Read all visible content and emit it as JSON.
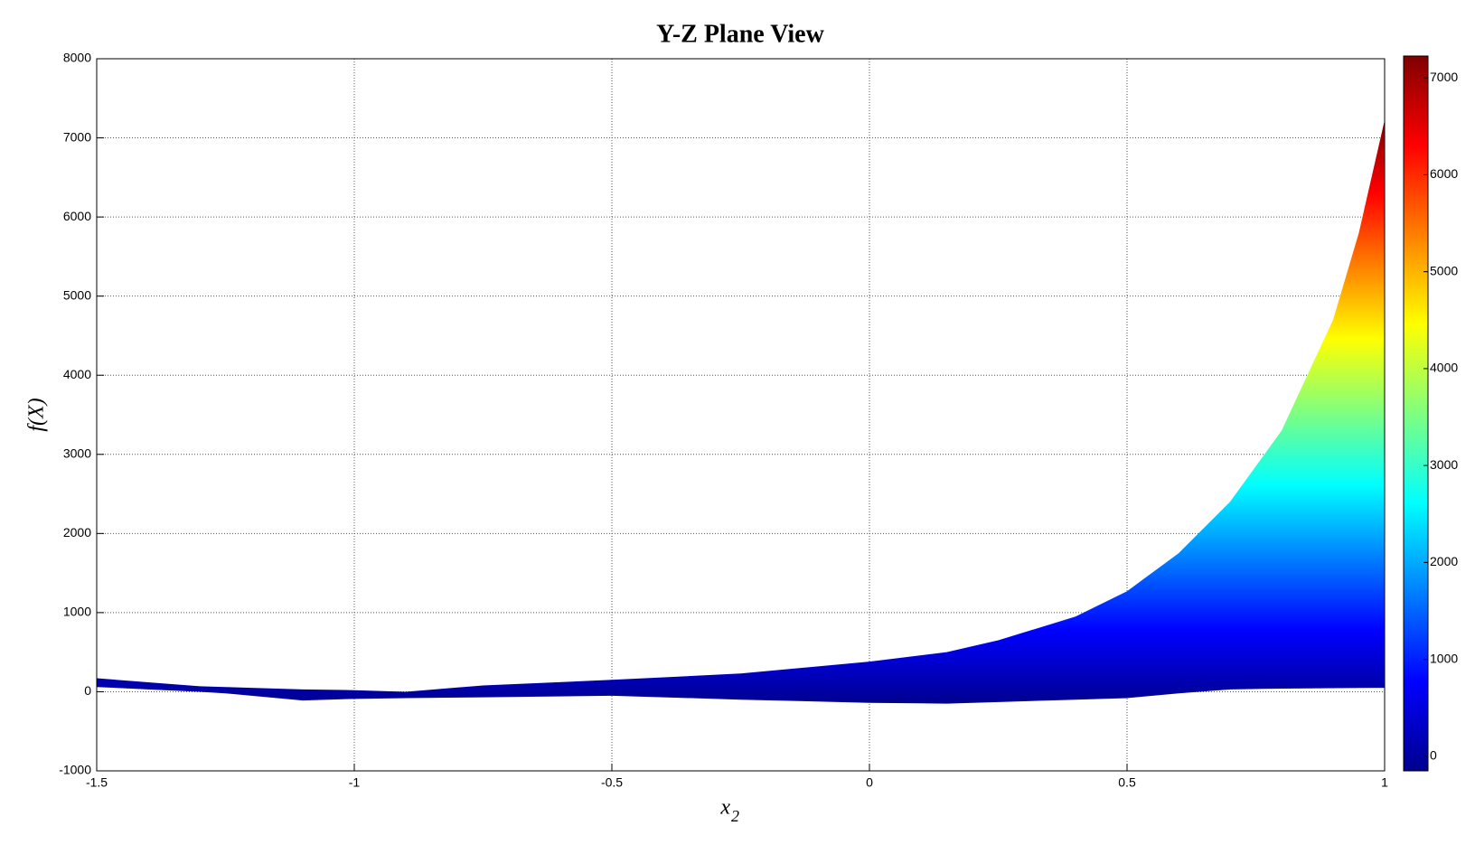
{
  "chart_data": {
    "type": "band",
    "title": "Y-Z Plane View",
    "xlabel": "x",
    "xlabel_subscript": "2",
    "ylabel": "f(X)",
    "x": [
      -1.5,
      -1.4,
      -1.3,
      -1.25,
      -1.1,
      -1,
      -0.9,
      -0.75,
      -0.5,
      -0.25,
      0,
      0.15,
      0.25,
      0.4,
      0.5,
      0.6,
      0.7,
      0.8,
      0.9,
      0.95,
      1
    ],
    "series": [
      {
        "values": [
          170,
          120,
          70,
          60,
          30,
          20,
          0,
          80,
          150,
          230,
          380,
          500,
          650,
          950,
          1270,
          1750,
          2400,
          3300,
          4700,
          5800,
          7225
        ]
      },
      {
        "values": [
          60,
          30,
          0,
          -20,
          -110,
          -90,
          -80,
          -70,
          -50,
          -100,
          -140,
          -150,
          -130,
          -100,
          -80,
          -20,
          30,
          40,
          45,
          48,
          50
        ]
      }
    ],
    "xlim": [
      -1.5,
      1
    ],
    "xticks": [
      -1.5,
      -1,
      -0.5,
      0,
      0.5,
      1
    ],
    "ylim": [
      -1000,
      8000
    ],
    "yticks": [
      -1000,
      0,
      1000,
      2000,
      3000,
      4000,
      5000,
      6000,
      7000,
      8000
    ],
    "grid": true,
    "colormap": "jet",
    "clim": [
      -150,
      7225
    ],
    "cticks": [
      0,
      1000,
      2000,
      3000,
      4000,
      5000,
      6000,
      7000
    ]
  }
}
